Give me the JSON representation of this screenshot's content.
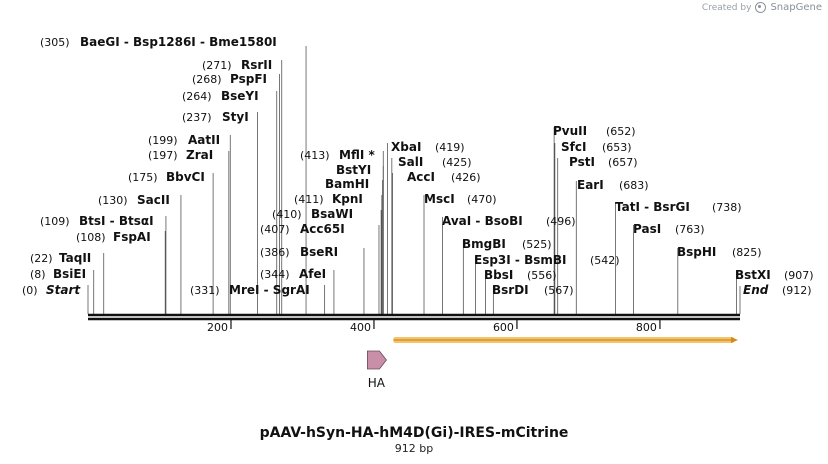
{
  "watermark": {
    "created_by": "Created by",
    "brand": "SnapGene"
  },
  "title": "pAAV-hSyn-HA-hM4D(Gi)-IRES-mCitrine",
  "length_label": "912 bp",
  "total_bp": 912,
  "colors": {
    "backbone": "#111111",
    "feature_ha": "#c98fa8",
    "feature_orf": "#f3c46b",
    "orf_line": "#d48a1a"
  },
  "axis_ticks": [
    {
      "value": 200,
      "label": "200"
    },
    {
      "value": 400,
      "label": "400"
    },
    {
      "value": 600,
      "label": "600"
    },
    {
      "value": 800,
      "label": "800"
    }
  ],
  "sites": [
    {
      "pos": 0,
      "pos_label": "(0)",
      "name": "Start",
      "italic": true
    },
    {
      "pos": 8,
      "pos_label": "(8)",
      "name": "BsiEI"
    },
    {
      "pos": 22,
      "pos_label": "(22)",
      "name": "TaqII"
    },
    {
      "pos": 108,
      "pos_label": "(108)",
      "name": "FspAI"
    },
    {
      "pos": 109,
      "pos_label": "(109)",
      "name": "BtsI - BtsαI"
    },
    {
      "pos": 130,
      "pos_label": "(130)",
      "name": "SacII"
    },
    {
      "pos": 175,
      "pos_label": "(175)",
      "name": "BbvCI"
    },
    {
      "pos": 197,
      "pos_label": "(197)",
      "name": "ZraI"
    },
    {
      "pos": 199,
      "pos_label": "(199)",
      "name": "AatII"
    },
    {
      "pos": 237,
      "pos_label": "(237)",
      "name": "StyI"
    },
    {
      "pos": 264,
      "pos_label": "(264)",
      "name": "BseYI"
    },
    {
      "pos": 268,
      "pos_label": "(268)",
      "name": "PspFI"
    },
    {
      "pos": 271,
      "pos_label": "(271)",
      "name": "RsrII"
    },
    {
      "pos": 305,
      "pos_label": "(305)",
      "name": "BaeGI - Bsp1286I - Bme1580I"
    },
    {
      "pos": 331,
      "pos_label": "(331)",
      "name": "MreI - SgrAI"
    },
    {
      "pos": 344,
      "pos_label": "(344)",
      "name": "AfeI"
    },
    {
      "pos": 386,
      "pos_label": "(386)",
      "name": "BseRI"
    },
    {
      "pos": 407,
      "pos_label": "(407)",
      "name": "Acc65I"
    },
    {
      "pos": 410,
      "pos_label": "(410)",
      "name": "BsaWI"
    },
    {
      "pos": 411,
      "pos_label": "(411)",
      "name": "KpnI"
    },
    {
      "pos": 412,
      "pos_label": "",
      "name": "BamHI"
    },
    {
      "pos": 413,
      "pos_label": "",
      "name": "BstYI"
    },
    {
      "pos": 413,
      "pos_label": "(413)",
      "name": "MflI *"
    },
    {
      "pos": 419,
      "pos_label": "(419)",
      "name": "XbaI"
    },
    {
      "pos": 425,
      "pos_label": "(425)",
      "name": "SalI"
    },
    {
      "pos": 426,
      "pos_label": "(426)",
      "name": "AccI"
    },
    {
      "pos": 470,
      "pos_label": "(470)",
      "name": "MscI"
    },
    {
      "pos": 496,
      "pos_label": "(496)",
      "name": "AvaI - BsoBI"
    },
    {
      "pos": 525,
      "pos_label": "(525)",
      "name": "BmgBI"
    },
    {
      "pos": 542,
      "pos_label": "(542)",
      "name": "Esp3I - BsmBI"
    },
    {
      "pos": 556,
      "pos_label": "(556)",
      "name": "BbsI"
    },
    {
      "pos": 567,
      "pos_label": "(567)",
      "name": "BsrDI"
    },
    {
      "pos": 652,
      "pos_label": "(652)",
      "name": "PvuII"
    },
    {
      "pos": 653,
      "pos_label": "(653)",
      "name": "SfcI"
    },
    {
      "pos": 657,
      "pos_label": "(657)",
      "name": "PstI"
    },
    {
      "pos": 683,
      "pos_label": "(683)",
      "name": "EarI"
    },
    {
      "pos": 738,
      "pos_label": "(738)",
      "name": "TatI - BsrGI"
    },
    {
      "pos": 763,
      "pos_label": "(763)",
      "name": "PasI"
    },
    {
      "pos": 825,
      "pos_label": "(825)",
      "name": "BspHI"
    },
    {
      "pos": 907,
      "pos_label": "(907)",
      "name": "BstXI"
    },
    {
      "pos": 912,
      "pos_label": "(912)",
      "name": "End",
      "italic": true
    }
  ],
  "features": [
    {
      "name": "HA",
      "start": 430,
      "end": 456,
      "type": "arrow",
      "label": "HA"
    },
    {
      "name": "ORF",
      "start": 430,
      "end": 912,
      "type": "bar",
      "label": ""
    }
  ]
}
